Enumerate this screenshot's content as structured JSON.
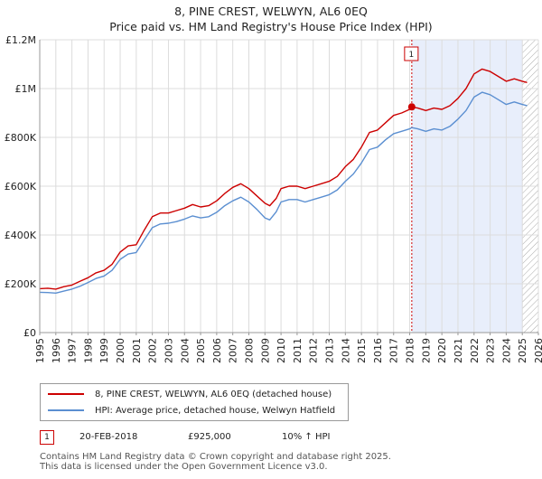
{
  "title": {
    "line1": "8, PINE CREST, WELWYN, AL6 0EQ",
    "line2": "Price paid vs. HM Land Registry's House Price Index (HPI)"
  },
  "colors": {
    "property": "#cc0000",
    "hpi": "#5b8fd1",
    "shade": "#e8eefb",
    "grid": "#dcdcdc"
  },
  "legend": {
    "property_label": "8, PINE CREST, WELWYN, AL6 0EQ (detached house)",
    "hpi_label": "HPI: Average price, detached house, Welwyn Hatfield"
  },
  "sale": {
    "marker": "1",
    "date": "20-FEB-2018",
    "price": "£925,000",
    "hpi_change": "10% ↑ HPI"
  },
  "footer": {
    "line1": "Contains HM Land Registry data © Crown copyright and database right 2025.",
    "line2": "This data is licensed under the Open Government Licence v3.0."
  },
  "chart_data": {
    "type": "line",
    "title": "8, PINE CREST, WELWYN, AL6 0EQ — Price paid vs. HM Land Registry's House Price Index (HPI)",
    "xlim": [
      1995,
      2026
    ],
    "ylim": [
      0,
      1200000
    ],
    "x_ticks": [
      "1995",
      "1996",
      "1997",
      "1998",
      "1999",
      "2000",
      "2001",
      "2002",
      "2003",
      "2004",
      "2005",
      "2006",
      "2007",
      "2008",
      "2009",
      "2010",
      "2011",
      "2012",
      "2013",
      "2014",
      "2015",
      "2016",
      "2017",
      "2018",
      "2019",
      "2020",
      "2021",
      "2022",
      "2023",
      "2024",
      "2025",
      "2026"
    ],
    "y_ticks": [
      {
        "value": 0,
        "label": "£0"
      },
      {
        "value": 200000,
        "label": "£200K"
      },
      {
        "value": 400000,
        "label": "£400K"
      },
      {
        "value": 600000,
        "label": "£600K"
      },
      {
        "value": 800000,
        "label": "£800K"
      },
      {
        "value": 1000000,
        "label": "£1M"
      },
      {
        "value": 1200000,
        "label": "£1.2M"
      }
    ],
    "shaded_from": 2018.13,
    "hatched_from": 2025.0,
    "sale_point": {
      "x": 2018.13,
      "y": 925000,
      "label": "1"
    },
    "series": [
      {
        "name": "8, PINE CREST, WELWYN, AL6 0EQ (detached house)",
        "x": [
          1995,
          1995.5,
          1996,
          1996.5,
          1997,
          1997.5,
          1998,
          1998.5,
          1999,
          1999.5,
          2000,
          2000.5,
          2001,
          2001.5,
          2002,
          2002.5,
          2003,
          2003.5,
          2004,
          2004.5,
          2005,
          2005.5,
          2006,
          2006.5,
          2007,
          2007.5,
          2008,
          2008.5,
          2009,
          2009.3,
          2009.7,
          2010,
          2010.5,
          2011,
          2011.5,
          2012,
          2012.5,
          2013,
          2013.5,
          2014,
          2014.5,
          2015,
          2015.5,
          2016,
          2016.5,
          2017,
          2017.5,
          2018,
          2018.13,
          2018.5,
          2019,
          2019.5,
          2020,
          2020.5,
          2021,
          2021.5,
          2022,
          2022.5,
          2023,
          2023.5,
          2024,
          2024.5,
          2025,
          2025.3
        ],
        "values": [
          180000,
          182000,
          178000,
          188000,
          195000,
          210000,
          225000,
          245000,
          255000,
          280000,
          330000,
          355000,
          360000,
          420000,
          475000,
          490000,
          490000,
          500000,
          510000,
          525000,
          515000,
          520000,
          540000,
          570000,
          595000,
          610000,
          590000,
          560000,
          530000,
          520000,
          550000,
          590000,
          600000,
          600000,
          590000,
          600000,
          610000,
          620000,
          640000,
          680000,
          710000,
          760000,
          820000,
          830000,
          860000,
          890000,
          900000,
          915000,
          925000,
          920000,
          910000,
          920000,
          915000,
          930000,
          960000,
          1000000,
          1060000,
          1080000,
          1070000,
          1050000,
          1030000,
          1040000,
          1030000,
          1025000
        ]
      },
      {
        "name": "HPI: Average price, detached house, Welwyn Hatfield",
        "x": [
          1995,
          1995.5,
          1996,
          1996.5,
          1997,
          1997.5,
          1998,
          1998.5,
          1999,
          1999.5,
          2000,
          2000.5,
          2001,
          2001.5,
          2002,
          2002.5,
          2003,
          2003.5,
          2004,
          2004.5,
          2005,
          2005.5,
          2006,
          2006.5,
          2007,
          2007.5,
          2008,
          2008.5,
          2009,
          2009.3,
          2009.7,
          2010,
          2010.5,
          2011,
          2011.5,
          2012,
          2012.5,
          2013,
          2013.5,
          2014,
          2014.5,
          2015,
          2015.5,
          2016,
          2016.5,
          2017,
          2017.5,
          2018,
          2018.13,
          2018.5,
          2019,
          2019.5,
          2020,
          2020.5,
          2021,
          2021.5,
          2022,
          2022.5,
          2023,
          2023.5,
          2024,
          2024.5,
          2025,
          2025.3
        ],
        "values": [
          165000,
          164000,
          162000,
          170000,
          178000,
          190000,
          205000,
          222000,
          232000,
          255000,
          300000,
          322000,
          328000,
          380000,
          430000,
          445000,
          448000,
          455000,
          465000,
          478000,
          470000,
          475000,
          493000,
          520000,
          540000,
          555000,
          535000,
          505000,
          470000,
          462000,
          495000,
          535000,
          545000,
          545000,
          535000,
          545000,
          555000,
          565000,
          585000,
          620000,
          650000,
          695000,
          750000,
          760000,
          790000,
          815000,
          825000,
          835000,
          840000,
          835000,
          825000,
          835000,
          830000,
          845000,
          875000,
          910000,
          965000,
          985000,
          975000,
          955000,
          935000,
          945000,
          935000,
          930000
        ]
      }
    ]
  }
}
